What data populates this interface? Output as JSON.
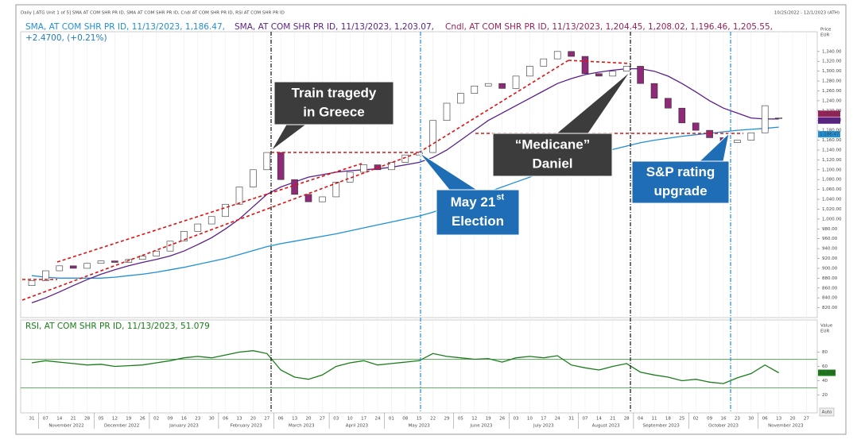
{
  "chart_data": [
    {
      "type": "candlestick",
      "header_left": "Daily [.ATG Unit 1 of 5] SMA AT COM SHR PR ID, SMA AT COM SHR PR ID, Cndl AT COM SHR PR ID, RSI AT COM SHR PR ID",
      "header_right": "10/25/2022 - 12/1/2023 (ATH)",
      "axis_label": [
        "Price",
        "EUR"
      ],
      "change_text": "+2.4700, (+0.21%)",
      "categories": [
        "31",
        "07",
        "14",
        "21",
        "28",
        "05",
        "12",
        "19",
        "26",
        "02",
        "09",
        "16",
        "23",
        "30",
        "06",
        "13",
        "20",
        "27",
        "06",
        "13",
        "20",
        "27",
        "03",
        "10",
        "17",
        "24",
        "01",
        "08",
        "15",
        "22",
        "29",
        "05",
        "12",
        "19",
        "26",
        "03",
        "10",
        "17",
        "24",
        "31",
        "07",
        "14",
        "21",
        "28",
        "04",
        "11",
        "18",
        "25",
        "02",
        "09",
        "16",
        "23",
        "30",
        "06",
        "13",
        "20",
        "27"
      ],
      "months": [
        null,
        "November 2022",
        "December 2022",
        "January 2023",
        "February 2023",
        "March 2023",
        "April 2023",
        "May 2023",
        "June 2023",
        "July 2023",
        "August 2023",
        "September 2023",
        "October 2023",
        "November 2023"
      ],
      "ylim": [
        800,
        1380
      ],
      "yticks": [
        {
          "value": 820,
          "label": "820.00"
        },
        {
          "value": 840,
          "label": "840.00"
        },
        {
          "value": 860,
          "label": "860.00"
        },
        {
          "value": 880,
          "label": "880.00"
        },
        {
          "value": 900,
          "label": "900.00"
        },
        {
          "value": 920,
          "label": "920.00"
        },
        {
          "value": 940,
          "label": "940.00"
        },
        {
          "value": 960,
          "label": "960.00"
        },
        {
          "value": 980,
          "label": "980.00"
        },
        {
          "value": 1000,
          "label": "1,000.00"
        },
        {
          "value": 1020,
          "label": "1,020.00"
        },
        {
          "value": 1040,
          "label": "1,040.00"
        },
        {
          "value": 1060,
          "label": "1,060.00"
        },
        {
          "value": 1080,
          "label": "1,080.00"
        },
        {
          "value": 1100,
          "label": "1,100.00"
        },
        {
          "value": 1120,
          "label": "1,120.00"
        },
        {
          "value": 1140,
          "label": "1,140.00"
        },
        {
          "value": 1160,
          "label": "1,160.00"
        },
        {
          "value": 1180,
          "label": "1,180.00"
        },
        {
          "value": 1200,
          "label": "1,200.00"
        },
        {
          "value": 1220,
          "label": "1,220.00"
        },
        {
          "value": 1240,
          "label": "1,240.00"
        },
        {
          "value": 1260,
          "label": "1,260.00"
        },
        {
          "value": 1280,
          "label": "1,280.00"
        },
        {
          "value": 1300,
          "label": "1,300.00"
        },
        {
          "value": 1320,
          "label": "1,320.00"
        },
        {
          "value": 1340,
          "label": "1,340.00"
        }
      ],
      "series": [
        {
          "type": "line",
          "name": "SMA, AT COM SHR PR ID, 11/13/2023, 1,186.47,",
          "color": "#1f8fd6",
          "last_label": "1,186.47",
          "values": [
            885,
            882,
            880,
            880,
            880,
            880,
            882,
            885,
            888,
            892,
            897,
            902,
            908,
            914,
            920,
            928,
            936,
            944,
            950,
            955,
            960,
            965,
            970,
            976,
            982,
            988,
            994,
            1000,
            1006,
            1014,
            1024,
            1034,
            1045,
            1055,
            1065,
            1075,
            1085,
            1095,
            1105,
            1115,
            1125,
            1133,
            1141,
            1148,
            1155,
            1160,
            1164,
            1168,
            1171,
            1174,
            1177,
            1180,
            1182,
            1184,
            1186.47,
            null,
            null
          ]
        },
        {
          "type": "line",
          "name": "SMA, AT COM SHR PR ID, 11/13/2023, 1,203.07,",
          "color": "#5a1f8a",
          "last_label": "1,203.07",
          "values": [
            830,
            840,
            852,
            865,
            877,
            888,
            897,
            905,
            912,
            918,
            925,
            935,
            948,
            962,
            980,
            1000,
            1025,
            1050,
            1065,
            1075,
            1085,
            1090,
            1095,
            1098,
            1100,
            1102,
            1105,
            1110,
            1115,
            1125,
            1140,
            1160,
            1180,
            1200,
            1215,
            1230,
            1245,
            1260,
            1275,
            1285,
            1293,
            1298,
            1302,
            1305,
            1305,
            1300,
            1290,
            1275,
            1258,
            1240,
            1225,
            1215,
            1205,
            1203,
            1203.07,
            null,
            null
          ]
        },
        {
          "type": "candlestick",
          "name": "Cndl, AT COM SHR PR ID, 11/13/2023, 1,204.45, 1,208.02, 1,196.46, 1,205.55,",
          "color": "#9c1f5a",
          "color_up": "#ffffff",
          "color_down": "#8e2a78",
          "last_label": "1,205.55",
          "open": [
            865,
            875,
            895,
            905,
            900,
            910,
            915,
            912,
            918,
            925,
            935,
            955,
            975,
            990,
            1005,
            1030,
            1065,
            1100,
            1135,
            1080,
            1050,
            1035,
            1045,
            1075,
            1095,
            1110,
            1100,
            1115,
            1130,
            1135,
            1200,
            1235,
            1255,
            1270,
            1275,
            1265,
            1290,
            1310,
            1325,
            1340,
            1330,
            1295,
            1290,
            1300,
            1310,
            1275,
            1245,
            1225,
            1195,
            1180,
            1165,
            1155,
            1160,
            1175,
            1204.45,
            null,
            null
          ],
          "close": [
            875,
            895,
            905,
            900,
            910,
            915,
            912,
            918,
            925,
            935,
            955,
            975,
            990,
            1005,
            1030,
            1065,
            1100,
            1135,
            1080,
            1050,
            1035,
            1045,
            1075,
            1095,
            1110,
            1100,
            1115,
            1130,
            1135,
            1200,
            1235,
            1255,
            1270,
            1275,
            1265,
            1290,
            1310,
            1325,
            1340,
            1330,
            1295,
            1290,
            1300,
            1310,
            1275,
            1245,
            1225,
            1195,
            1180,
            1165,
            1155,
            1160,
            1175,
            1230,
            1205.55,
            null,
            null
          ]
        }
      ],
      "annotations": [
        {
          "lines": [
            "Train tragedy",
            "in Greece"
          ],
          "style": "dark"
        },
        {
          "lines": [
            "“Medicane”",
            "Daniel"
          ],
          "style": "dark"
        },
        {
          "lines": [
            "May 21",
            "Election"
          ],
          "sup": "st",
          "style": "blue"
        },
        {
          "lines": [
            "S&P rating",
            "upgrade"
          ],
          "style": "blue"
        }
      ]
    },
    {
      "type": "line",
      "axis_label": [
        "Value",
        "EUR"
      ],
      "ylim": [
        -5,
        125
      ],
      "yticks": [
        20,
        40,
        60,
        80
      ],
      "levels": [
        70,
        30
      ],
      "auto_label": "Auto",
      "series": [
        {
          "name": "RSI, AT COM SHR PR ID, 11/13/2023, 51.079",
          "color": "#1a7d1a",
          "values": [
            65,
            68,
            66,
            64,
            62,
            63,
            60,
            61,
            62,
            65,
            68,
            72,
            74,
            72,
            76,
            80,
            82,
            78,
            55,
            45,
            42,
            48,
            60,
            65,
            68,
            62,
            64,
            66,
            68,
            78,
            74,
            72,
            70,
            71,
            66,
            72,
            74,
            72,
            75,
            62,
            58,
            55,
            60,
            64,
            52,
            48,
            45,
            40,
            42,
            38,
            36,
            44,
            50,
            62,
            51.079,
            null,
            null
          ]
        }
      ]
    }
  ]
}
